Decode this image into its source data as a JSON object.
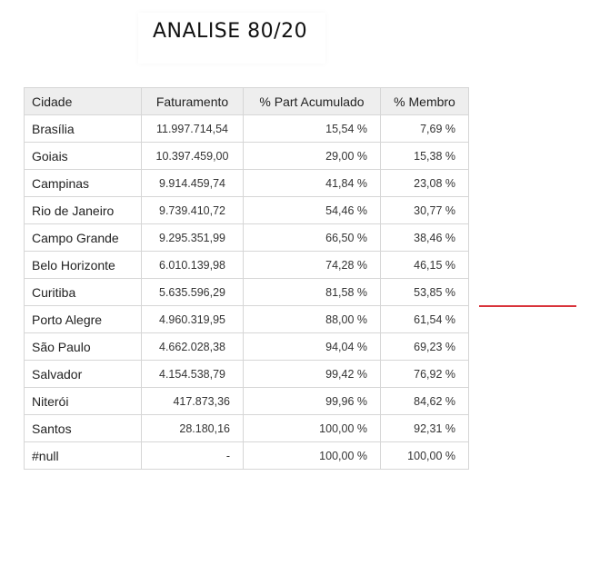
{
  "title": "ANALISE 80/20",
  "table": {
    "headers": [
      "Cidade",
      "Faturamento",
      "% Part Acumulado",
      "% Membro"
    ],
    "rows": [
      {
        "cidade": "Brasília",
        "faturamento": "11.997.714,54",
        "part": "15,54 %",
        "membro": "7,69 %"
      },
      {
        "cidade": "Goiais",
        "faturamento": "10.397.459,00",
        "part": "29,00 %",
        "membro": "15,38 %"
      },
      {
        "cidade": "Campinas",
        "faturamento": "9.914.459,74",
        "part": "41,84 %",
        "membro": "23,08 %"
      },
      {
        "cidade": "Rio de Janeiro",
        "faturamento": "9.739.410,72",
        "part": "54,46 %",
        "membro": "30,77 %"
      },
      {
        "cidade": "Campo Grande",
        "faturamento": "9.295.351,99",
        "part": "66,50 %",
        "membro": "38,46 %"
      },
      {
        "cidade": "Belo Horizonte",
        "faturamento": "6.010.139,98",
        "part": "74,28 %",
        "membro": "46,15 %"
      },
      {
        "cidade": "Curitiba",
        "faturamento": "5.635.596,29",
        "part": "81,58 %",
        "membro": "53,85 %"
      },
      {
        "cidade": "Porto Alegre",
        "faturamento": "4.960.319,95",
        "part": "88,00 %",
        "membro": "61,54 %"
      },
      {
        "cidade": "São Paulo",
        "faturamento": "4.662.028,38",
        "part": "94,04 %",
        "membro": "69,23 %"
      },
      {
        "cidade": "Salvador",
        "faturamento": "4.154.538,79",
        "part": "99,42 %",
        "membro": "76,92 %"
      },
      {
        "cidade": "Niterói",
        "faturamento": "417.873,36",
        "part": "99,96 %",
        "membro": "84,62 %"
      },
      {
        "cidade": "Santos",
        "faturamento": "28.180,16",
        "part": "100,00 %",
        "membro": "92,31 %"
      },
      {
        "cidade": "#null",
        "faturamento": "-",
        "part": "100,00 %",
        "membro": "100,00 %"
      }
    ]
  },
  "colors": {
    "marker_line": "#d9333b",
    "header_bg": "#eeeeee",
    "border": "#d6d6d6"
  }
}
